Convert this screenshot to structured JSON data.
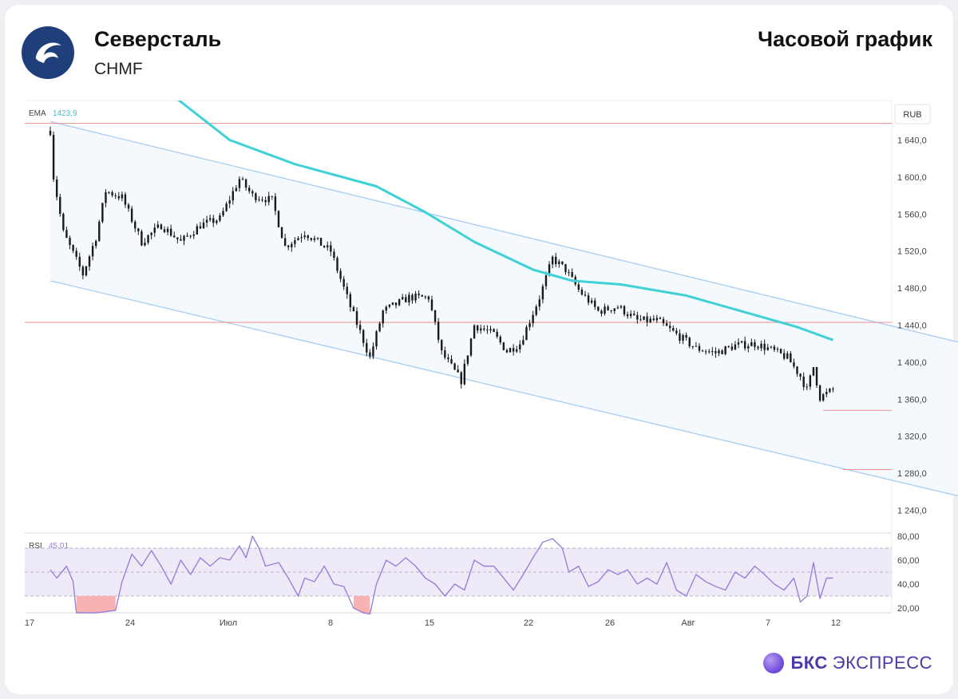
{
  "header": {
    "company": "Северсталь",
    "ticker": "CHMF",
    "chart_title": "Часовой график"
  },
  "brand": {
    "bold": "БКС",
    "rest": "ЭКСПРЕСС",
    "icon": "bks-logo-icon"
  },
  "logo": {
    "icon": "severstal-logo-icon",
    "color": "#1f3f7a"
  },
  "colors": {
    "candles": "#1a1a1a",
    "ema": "#3fd1d6",
    "channel": "#a9cdf0",
    "channel_fill": "#f4f9fe",
    "levels": "#f28b8b",
    "rsi": "#9b7fd9",
    "rsi_band": "#efeaf8"
  },
  "chart_data": [
    {
      "type": "candlestick",
      "currency": "RUB",
      "indicator": {
        "label": "EMA",
        "value": "1423,9"
      },
      "ylim": [
        1220,
        1680
      ],
      "yticks": [
        "1 640,0",
        "1 600,0",
        "1 560,0",
        "1 520,0",
        "1 480,0",
        "1 440,0",
        "1 400,0",
        "1 360,0",
        "1 320,0",
        "1 280,0",
        "1 240,0"
      ],
      "xticks": [
        "17",
        "24",
        "Июл",
        "8",
        "15",
        "22",
        "26",
        "Авг",
        "7",
        "12"
      ],
      "price_path": [
        {
          "t": 0,
          "p": 1650
        },
        {
          "t": 1,
          "p": 1600
        },
        {
          "t": 4,
          "p": 1540
        },
        {
          "t": 10,
          "p": 1495
        },
        {
          "t": 14,
          "p": 1535
        },
        {
          "t": 17,
          "p": 1585
        },
        {
          "t": 22,
          "p": 1578
        },
        {
          "t": 28,
          "p": 1530
        },
        {
          "t": 34,
          "p": 1548
        },
        {
          "t": 40,
          "p": 1530
        },
        {
          "t": 46,
          "p": 1548
        },
        {
          "t": 52,
          "p": 1555
        },
        {
          "t": 58,
          "p": 1598
        },
        {
          "t": 62,
          "p": 1580
        },
        {
          "t": 68,
          "p": 1575
        },
        {
          "t": 72,
          "p": 1525
        },
        {
          "t": 78,
          "p": 1540
        },
        {
          "t": 86,
          "p": 1520
        },
        {
          "t": 92,
          "p": 1460
        },
        {
          "t": 98,
          "p": 1405
        },
        {
          "t": 102,
          "p": 1455
        },
        {
          "t": 110,
          "p": 1470
        },
        {
          "t": 116,
          "p": 1470
        },
        {
          "t": 120,
          "p": 1410
        },
        {
          "t": 126,
          "p": 1380
        },
        {
          "t": 130,
          "p": 1440
        },
        {
          "t": 136,
          "p": 1430
        },
        {
          "t": 140,
          "p": 1412
        },
        {
          "t": 144,
          "p": 1420
        },
        {
          "t": 150,
          "p": 1470
        },
        {
          "t": 154,
          "p": 1512
        },
        {
          "t": 158,
          "p": 1500
        },
        {
          "t": 162,
          "p": 1478
        },
        {
          "t": 168,
          "p": 1455
        },
        {
          "t": 174,
          "p": 1460
        },
        {
          "t": 180,
          "p": 1445
        },
        {
          "t": 186,
          "p": 1445
        },
        {
          "t": 192,
          "p": 1430
        },
        {
          "t": 198,
          "p": 1415
        },
        {
          "t": 204,
          "p": 1410
        },
        {
          "t": 210,
          "p": 1418
        },
        {
          "t": 216,
          "p": 1420
        },
        {
          "t": 220,
          "p": 1415
        },
        {
          "t": 226,
          "p": 1405
        },
        {
          "t": 230,
          "p": 1385
        },
        {
          "t": 232,
          "p": 1370
        },
        {
          "t": 234,
          "p": 1395
        },
        {
          "t": 236,
          "p": 1362
        },
        {
          "t": 240,
          "p": 1370
        }
      ],
      "ema_path": [
        {
          "t": 34,
          "p": 1698
        },
        {
          "t": 55,
          "p": 1640
        },
        {
          "t": 75,
          "p": 1614
        },
        {
          "t": 100,
          "p": 1590
        },
        {
          "t": 115,
          "p": 1562
        },
        {
          "t": 130,
          "p": 1530
        },
        {
          "t": 148,
          "p": 1500
        },
        {
          "t": 160,
          "p": 1488
        },
        {
          "t": 175,
          "p": 1484
        },
        {
          "t": 195,
          "p": 1472
        },
        {
          "t": 215,
          "p": 1452
        },
        {
          "t": 229,
          "p": 1438
        },
        {
          "t": 240,
          "p": 1423.9
        }
      ],
      "channel": {
        "upper": [
          {
            "t": 0,
            "p": 1660
          },
          {
            "t": 285,
            "p": 1416
          }
        ],
        "lower": [
          {
            "t": 0,
            "p": 1488
          },
          {
            "t": 285,
            "p": 1250
          }
        ]
      },
      "levels": [
        {
          "price": 1658
        },
        {
          "price": 1443
        },
        {
          "price": 1348,
          "from_t": 237
        },
        {
          "price": 1284,
          "from_t": 243
        }
      ]
    },
    {
      "type": "line",
      "indicator": {
        "label": "RSI",
        "value": "45,01"
      },
      "ylim": [
        15,
        82
      ],
      "yticks": [
        "80,00",
        "60,00",
        "40,00",
        "20,00"
      ],
      "bands": {
        "upper": 70,
        "middle": 50,
        "lower": 30
      },
      "rsi_path": [
        {
          "t": 0,
          "p": 52
        },
        {
          "t": 2,
          "p": 45
        },
        {
          "t": 5,
          "p": 55
        },
        {
          "t": 7,
          "p": 42
        },
        {
          "t": 8,
          "p": 16
        },
        {
          "t": 14,
          "p": 16
        },
        {
          "t": 20,
          "p": 18
        },
        {
          "t": 22,
          "p": 42
        },
        {
          "t": 25,
          "p": 65
        },
        {
          "t": 28,
          "p": 55
        },
        {
          "t": 31,
          "p": 68
        },
        {
          "t": 34,
          "p": 55
        },
        {
          "t": 37,
          "p": 40
        },
        {
          "t": 40,
          "p": 60
        },
        {
          "t": 43,
          "p": 48
        },
        {
          "t": 46,
          "p": 62
        },
        {
          "t": 49,
          "p": 55
        },
        {
          "t": 52,
          "p": 62
        },
        {
          "t": 55,
          "p": 60
        },
        {
          "t": 58,
          "p": 72
        },
        {
          "t": 60,
          "p": 62
        },
        {
          "t": 62,
          "p": 80
        },
        {
          "t": 64,
          "p": 70
        },
        {
          "t": 66,
          "p": 55
        },
        {
          "t": 70,
          "p": 58
        },
        {
          "t": 73,
          "p": 45
        },
        {
          "t": 76,
          "p": 30
        },
        {
          "t": 78,
          "p": 45
        },
        {
          "t": 81,
          "p": 42
        },
        {
          "t": 84,
          "p": 55
        },
        {
          "t": 87,
          "p": 40
        },
        {
          "t": 90,
          "p": 38
        },
        {
          "t": 93,
          "p": 20
        },
        {
          "t": 96,
          "p": 16
        },
        {
          "t": 98,
          "p": 15
        },
        {
          "t": 100,
          "p": 40
        },
        {
          "t": 103,
          "p": 60
        },
        {
          "t": 106,
          "p": 55
        },
        {
          "t": 109,
          "p": 62
        },
        {
          "t": 112,
          "p": 55
        },
        {
          "t": 115,
          "p": 45
        },
        {
          "t": 118,
          "p": 40
        },
        {
          "t": 121,
          "p": 30
        },
        {
          "t": 124,
          "p": 40
        },
        {
          "t": 127,
          "p": 35
        },
        {
          "t": 130,
          "p": 60
        },
        {
          "t": 133,
          "p": 55
        },
        {
          "t": 136,
          "p": 55
        },
        {
          "t": 139,
          "p": 45
        },
        {
          "t": 142,
          "p": 35
        },
        {
          "t": 145,
          "p": 48
        },
        {
          "t": 148,
          "p": 62
        },
        {
          "t": 151,
          "p": 75
        },
        {
          "t": 154,
          "p": 78
        },
        {
          "t": 157,
          "p": 70
        },
        {
          "t": 159,
          "p": 50
        },
        {
          "t": 162,
          "p": 55
        },
        {
          "t": 165,
          "p": 38
        },
        {
          "t": 168,
          "p": 42
        },
        {
          "t": 171,
          "p": 52
        },
        {
          "t": 174,
          "p": 48
        },
        {
          "t": 177,
          "p": 52
        },
        {
          "t": 180,
          "p": 40
        },
        {
          "t": 183,
          "p": 45
        },
        {
          "t": 186,
          "p": 40
        },
        {
          "t": 189,
          "p": 58
        },
        {
          "t": 192,
          "p": 35
        },
        {
          "t": 195,
          "p": 30
        },
        {
          "t": 198,
          "p": 48
        },
        {
          "t": 201,
          "p": 42
        },
        {
          "t": 204,
          "p": 38
        },
        {
          "t": 207,
          "p": 35
        },
        {
          "t": 210,
          "p": 50
        },
        {
          "t": 213,
          "p": 45
        },
        {
          "t": 216,
          "p": 55
        },
        {
          "t": 219,
          "p": 48
        },
        {
          "t": 222,
          "p": 40
        },
        {
          "t": 225,
          "p": 35
        },
        {
          "t": 228,
          "p": 45
        },
        {
          "t": 230,
          "p": 25
        },
        {
          "t": 232,
          "p": 30
        },
        {
          "t": 234,
          "p": 58
        },
        {
          "t": 236,
          "p": 28
        },
        {
          "t": 238,
          "p": 45
        },
        {
          "t": 240,
          "p": 45.01
        }
      ]
    }
  ]
}
